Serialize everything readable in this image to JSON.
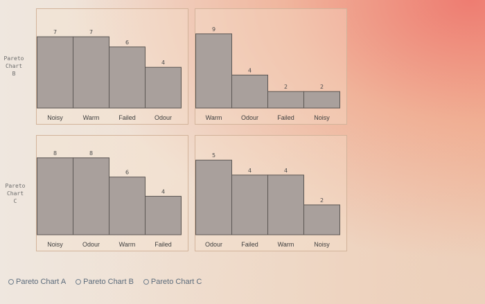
{
  "side_labels": [
    {
      "lines": [
        "Pareto",
        "Chart",
        "B"
      ]
    },
    {
      "lines": [
        "Pareto",
        "Chart",
        "C"
      ]
    }
  ],
  "chart_data": [
    {
      "type": "bar",
      "categories": [
        "Noisy",
        "Warm",
        "Failed",
        "Odour"
      ],
      "values": [
        7,
        7,
        6,
        4
      ],
      "title": "",
      "xlabel": "",
      "ylabel": "",
      "ylim": [
        0,
        8.5
      ],
      "grid": false
    },
    {
      "type": "bar",
      "categories": [
        "Warm",
        "Odour",
        "Failed",
        "Noisy"
      ],
      "values": [
        9,
        4,
        2,
        2
      ],
      "title": "",
      "xlabel": "",
      "ylabel": "",
      "ylim": [
        0,
        10.5
      ],
      "grid": false
    },
    {
      "type": "bar",
      "categories": [
        "Noisy",
        "Odour",
        "Warm",
        "Failed"
      ],
      "values": [
        8,
        8,
        6,
        4
      ],
      "title": "",
      "xlabel": "",
      "ylabel": "",
      "ylim": [
        0,
        9
      ],
      "grid": false
    },
    {
      "type": "bar",
      "categories": [
        "Odour",
        "Failed",
        "Warm",
        "Noisy"
      ],
      "values": [
        5,
        4,
        4,
        2
      ],
      "title": "",
      "xlabel": "",
      "ylabel": "",
      "ylim": [
        0,
        5.8
      ],
      "grid": false
    }
  ],
  "colors": {
    "bar_fill": "#a9a09c",
    "bar_stroke": "#5a5552",
    "panel_border": "#d2b39a",
    "option_text": "#5a6a7a"
  },
  "options": [
    {
      "label": "Pareto Chart A",
      "selected": false
    },
    {
      "label": "Pareto Chart B",
      "selected": false
    },
    {
      "label": "Pareto Chart C",
      "selected": false
    }
  ]
}
